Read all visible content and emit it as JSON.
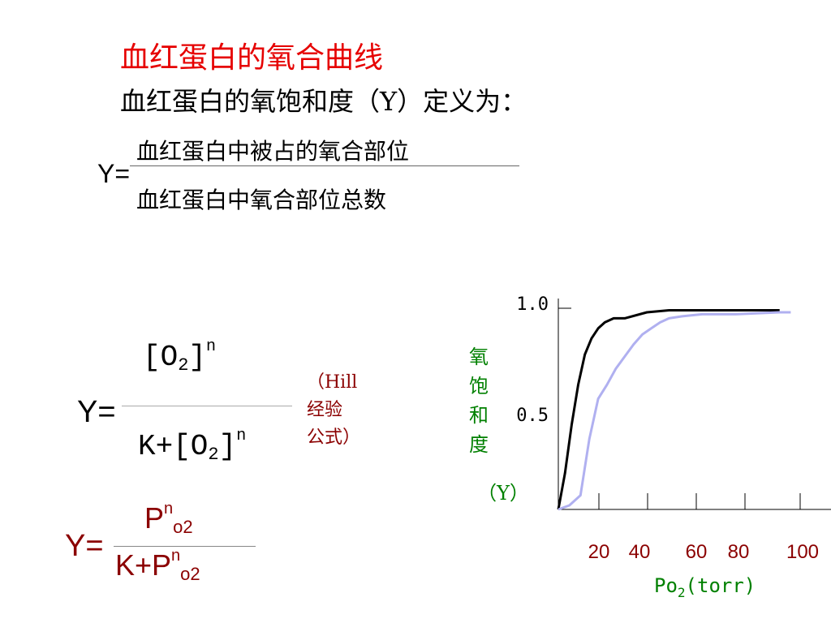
{
  "title": "血红蛋白的氧合曲线",
  "definition": "血红蛋白的氧饱和度（Y）定义为：",
  "fraction": {
    "lhs": "Y=",
    "numerator": "血红蛋白中被占的氧合部位",
    "denominator": "血红蛋白中氧合部位总数"
  },
  "hill": {
    "lhs": "Y=",
    "num_base": "[O",
    "num_sub": "2",
    "num_close": "]",
    "num_sup": "n",
    "den_prefix": "K+[O",
    "den_sub": "2",
    "den_close": "]",
    "den_sup": "n",
    "note": "（Hill\n经验\n公式）"
  },
  "pressure_form": {
    "lhs": "Y=",
    "num_base": "P",
    "num_sup": "n",
    "num_sub": "o2",
    "den_prefix": "K+P",
    "den_sup": "n",
    "den_sub": "o2"
  },
  "colors": {
    "title": "#e60000",
    "formula": "#8b0000",
    "y_axis_label": "#008000",
    "x_axis_label": "#008000",
    "x_ticks": "#8b0000",
    "curve_dark": "#000000",
    "curve_light": "#b0b0f0"
  },
  "chart_data": {
    "type": "line",
    "xlabel_base": "Po",
    "xlabel_sub": "2",
    "xlabel_unit": "(torr)",
    "ylabel_chars": [
      "氧",
      "饱",
      "和",
      "度",
      "（Y）"
    ],
    "xticks": [
      "20",
      "40",
      "60",
      "80",
      "100"
    ],
    "ytick_top": "1.0",
    "ytick_mid": "0.5",
    "xlim": [
      0,
      110
    ],
    "ylim": [
      0,
      1.0
    ],
    "series": [
      {
        "color": "curve_dark",
        "x": [
          0,
          3,
          6,
          9,
          12,
          15,
          18,
          21,
          25,
          30,
          40,
          50,
          60,
          70,
          80,
          100
        ],
        "y": [
          0,
          0.18,
          0.42,
          0.62,
          0.77,
          0.85,
          0.9,
          0.93,
          0.95,
          0.95,
          0.98,
          0.99,
          0.99,
          0.99,
          0.99,
          0.99
        ]
      },
      {
        "color": "curve_light",
        "x": [
          0,
          5,
          10,
          14,
          18,
          22,
          26,
          30,
          34,
          38,
          42,
          46,
          50,
          56,
          65,
          80,
          100,
          105
        ],
        "y": [
          0,
          0.02,
          0.07,
          0.35,
          0.55,
          0.62,
          0.7,
          0.76,
          0.82,
          0.87,
          0.9,
          0.93,
          0.95,
          0.96,
          0.97,
          0.97,
          0.98,
          0.98
        ]
      }
    ]
  }
}
